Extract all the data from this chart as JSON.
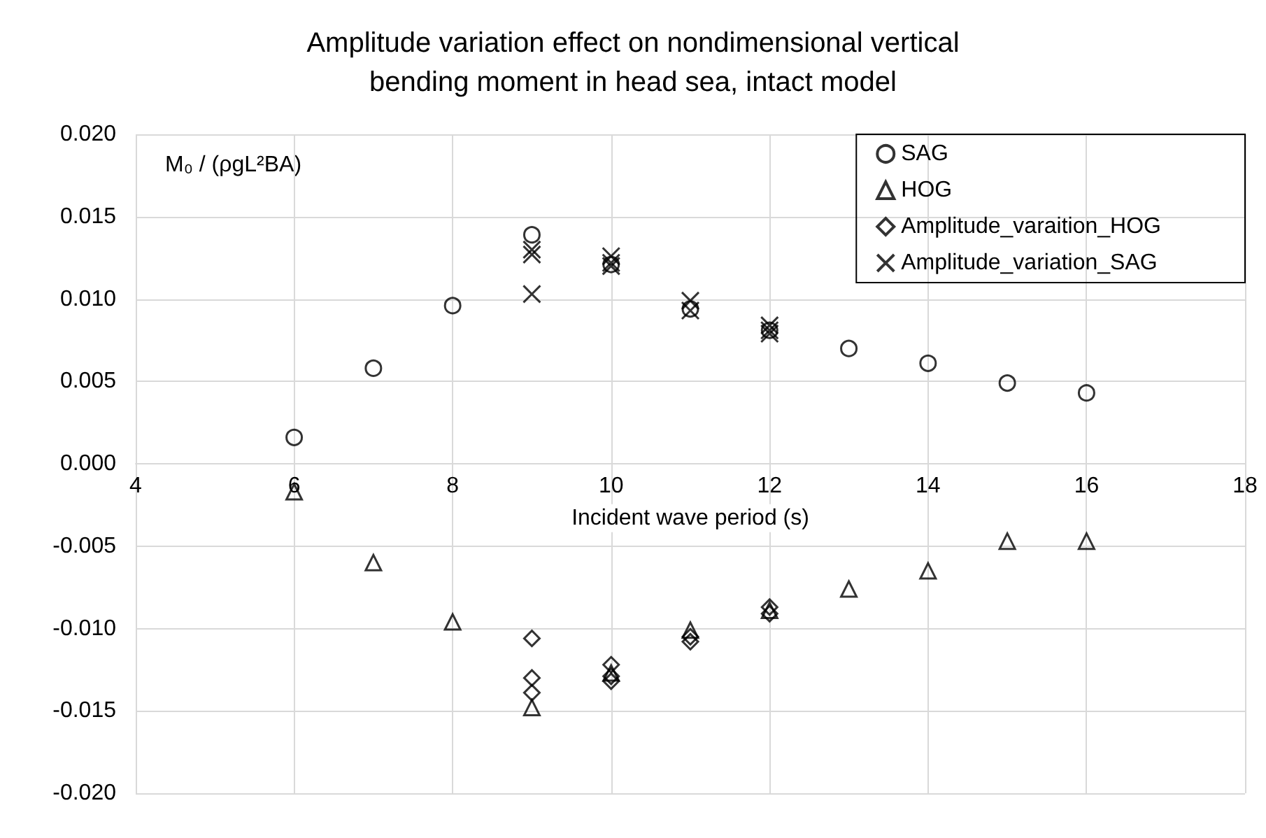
{
  "chart_data": {
    "type": "scatter",
    "title": "Amplitude variation effect on nondimensional vertical\nbending moment in head sea, intact model",
    "xlabel": "Incident wave period (s)",
    "ylabel": "M₀ / (ρgL²BA)",
    "xlim": [
      4,
      18
    ],
    "xticks": [
      4,
      6,
      8,
      10,
      12,
      14,
      16,
      18
    ],
    "ylim": [
      -0.02,
      0.02
    ],
    "yticks": [
      {
        "value": -0.02,
        "label": "-0.020"
      },
      {
        "value": -0.015,
        "label": "-0.015"
      },
      {
        "value": -0.01,
        "label": "-0.010"
      },
      {
        "value": -0.005,
        "label": "-0.005"
      },
      {
        "value": 0,
        "label": "0.000"
      },
      {
        "value": 0.005,
        "label": "0.005"
      },
      {
        "value": 0.01,
        "label": "0.010"
      },
      {
        "value": 0.015,
        "label": "0.015"
      },
      {
        "value": 0.02,
        "label": "0.020"
      }
    ],
    "grid": true,
    "legend": "top right",
    "series": [
      {
        "name": "SAG",
        "color": "#000000",
        "marker": "circle",
        "x": [
          6,
          7,
          8,
          9,
          10,
          11,
          12,
          13,
          14,
          15,
          16
        ],
        "values": [
          0.0016,
          0.0058,
          0.0096,
          0.0139,
          0.0121,
          0.0094,
          0.0081,
          0.007,
          0.0061,
          0.0049,
          0.0043
        ]
      },
      {
        "name": "HOG",
        "color": "#000000",
        "marker": "triangle",
        "x": [
          6,
          7,
          8,
          9,
          10,
          11,
          12,
          13,
          14,
          15,
          16
        ],
        "values": [
          -0.0017,
          -0.006,
          -0.0096,
          -0.0148,
          -0.0127,
          -0.0101,
          -0.0089,
          -0.0076,
          -0.0065,
          -0.0047,
          -0.0047
        ]
      },
      {
        "name": "Amplitude_varaition_HOG",
        "color": "#000000",
        "marker": "diamond",
        "x": [
          9,
          9,
          9,
          10,
          10,
          10,
          11,
          11,
          12,
          12
        ],
        "values": [
          -0.0106,
          -0.013,
          -0.0139,
          -0.0122,
          -0.0129,
          -0.0132,
          -0.0105,
          -0.0108,
          -0.0087,
          -0.0091
        ]
      },
      {
        "name": "Amplitude_variation_SAG",
        "color": "#000000",
        "marker": "cross",
        "x": [
          9,
          9,
          9,
          10,
          10,
          10,
          11,
          11,
          12,
          12,
          12
        ],
        "values": [
          0.013,
          0.0127,
          0.0103,
          0.0126,
          0.0122,
          0.012,
          0.0099,
          0.0093,
          0.0084,
          0.0081,
          0.0079
        ]
      }
    ]
  }
}
